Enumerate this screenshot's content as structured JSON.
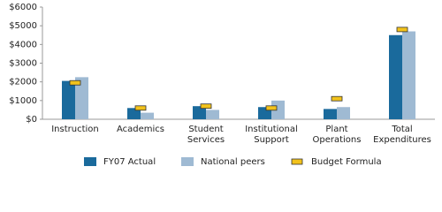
{
  "chart_data": {
    "type": "bar",
    "categories": [
      "Instruction",
      "Academics",
      "Student Services",
      "Institutional Support",
      "Plant Operations",
      "Total Expenditures"
    ],
    "series": [
      {
        "name": "FY07 Actual",
        "color": "#1a6a9c",
        "style": "bar",
        "values": [
          2050,
          600,
          700,
          650,
          550,
          4500
        ]
      },
      {
        "name": "National peers",
        "color": "#9fbad3",
        "style": "bar",
        "values": [
          2250,
          350,
          500,
          1000,
          650,
          4700
        ]
      },
      {
        "name": "Budget Formula",
        "color": "#f2c21b",
        "style": "marker",
        "values": [
          1950,
          600,
          700,
          600,
          1100,
          4800
        ]
      }
    ],
    "ylim": [
      0,
      6000
    ],
    "yticks": [
      {
        "value": 0,
        "label": "$0"
      },
      {
        "value": 1000,
        "label": "$1000"
      },
      {
        "value": 2000,
        "label": "$2000"
      },
      {
        "value": 3000,
        "label": "$3000"
      },
      {
        "value": 4000,
        "label": "$4000"
      },
      {
        "value": 5000,
        "label": "$5000"
      },
      {
        "value": 6000,
        "label": "$6000"
      }
    ],
    "grid": false
  }
}
